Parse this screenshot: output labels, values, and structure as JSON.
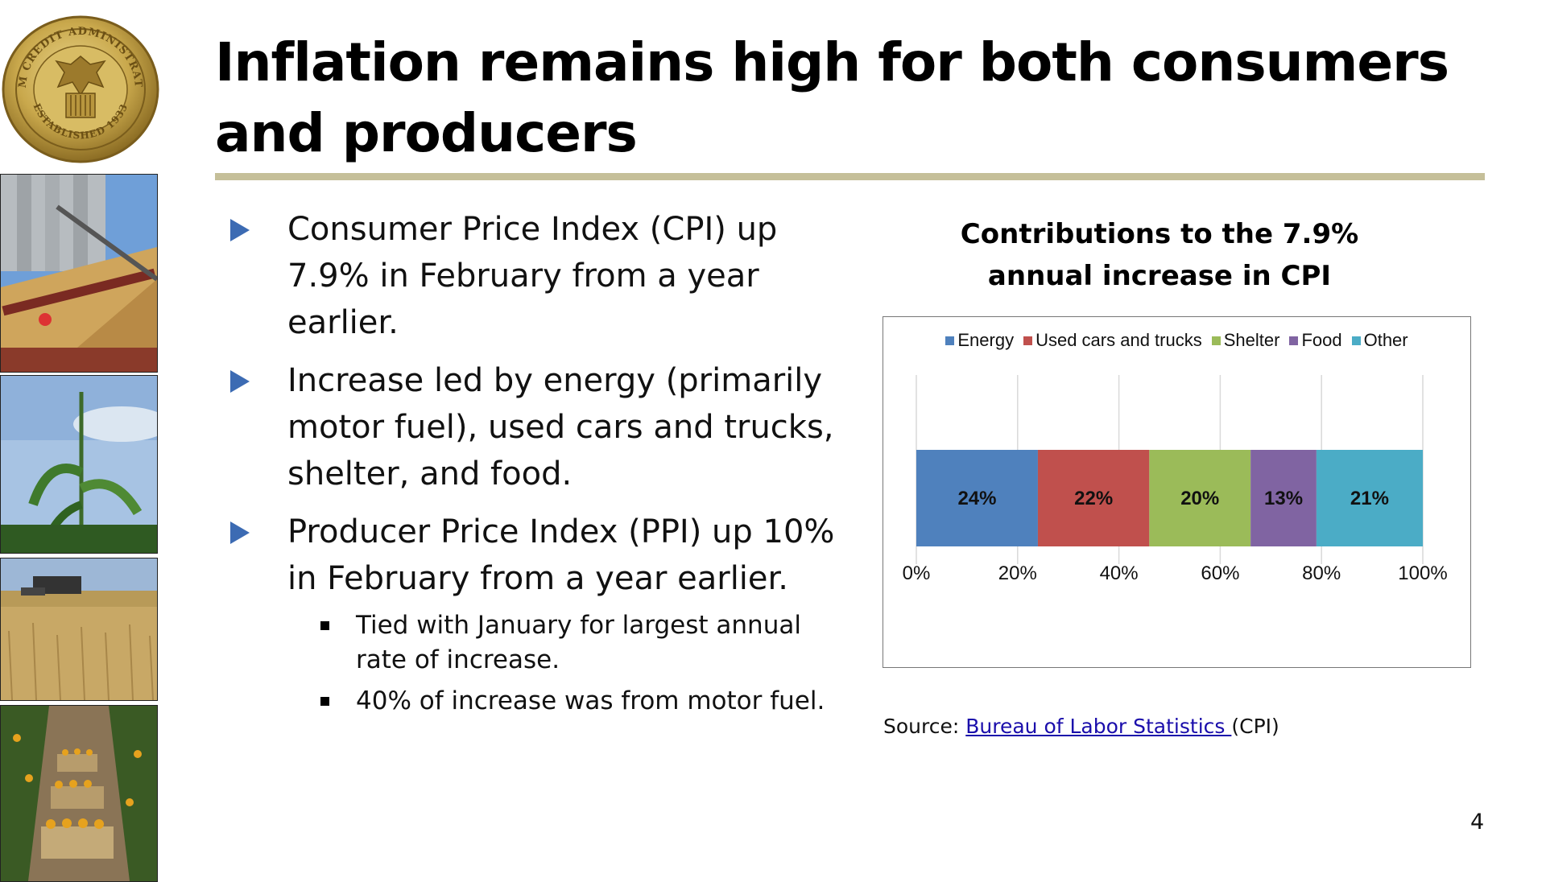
{
  "seal": {
    "top_text": "FARM CREDIT ADMINISTRATION",
    "bottom_text": "ESTABLISHED 1933"
  },
  "title": "Inflation remains high for both consumers and producers",
  "bullets": [
    {
      "text": "Consumer Price Index (CPI) up 7.9% in February from a year earlier."
    },
    {
      "text": "Increase led by energy (primarily motor fuel), used cars and trucks, shelter, and food."
    },
    {
      "text": "Producer Price Index (PPI) up 10% in February from a year earlier."
    }
  ],
  "sub_bullets": [
    {
      "text": "Tied with January for largest annual rate of increase."
    },
    {
      "text": "40% of increase was from motor fuel."
    }
  ],
  "source": {
    "prefix": "Source: ",
    "link_text": "Bureau of Labor Statistics ",
    "suffix": "(CPI)"
  },
  "page_number": "4",
  "chart_data": {
    "type": "bar",
    "orientation": "horizontal",
    "stacked": true,
    "title": "Contributions to the 7.9% annual increase in CPI",
    "categories": [
      ""
    ],
    "series": [
      {
        "name": "Energy",
        "values": [
          24
        ],
        "label": "24%",
        "color": "#4f81bd"
      },
      {
        "name": "Used cars and trucks",
        "values": [
          22
        ],
        "label": "22%",
        "color": "#c0504d"
      },
      {
        "name": "Shelter",
        "values": [
          20
        ],
        "label": "20%",
        "color": "#9bbb59"
      },
      {
        "name": "Food",
        "values": [
          13
        ],
        "label": "13%",
        "color": "#8064a2"
      },
      {
        "name": "Other",
        "values": [
          21
        ],
        "label": "21%",
        "color": "#4bacc6"
      }
    ],
    "xlim": [
      0,
      100
    ],
    "xticks": [
      "0%",
      "20%",
      "40%",
      "60%",
      "80%",
      "100%"
    ],
    "xtick_values": [
      0,
      20,
      40,
      60,
      80,
      100
    ],
    "grid": true,
    "legend": "top"
  },
  "colors": {
    "accent_rule": "#c5bf99",
    "bullet_arrow": "#3c6bb3",
    "link": "#1a0dab"
  }
}
